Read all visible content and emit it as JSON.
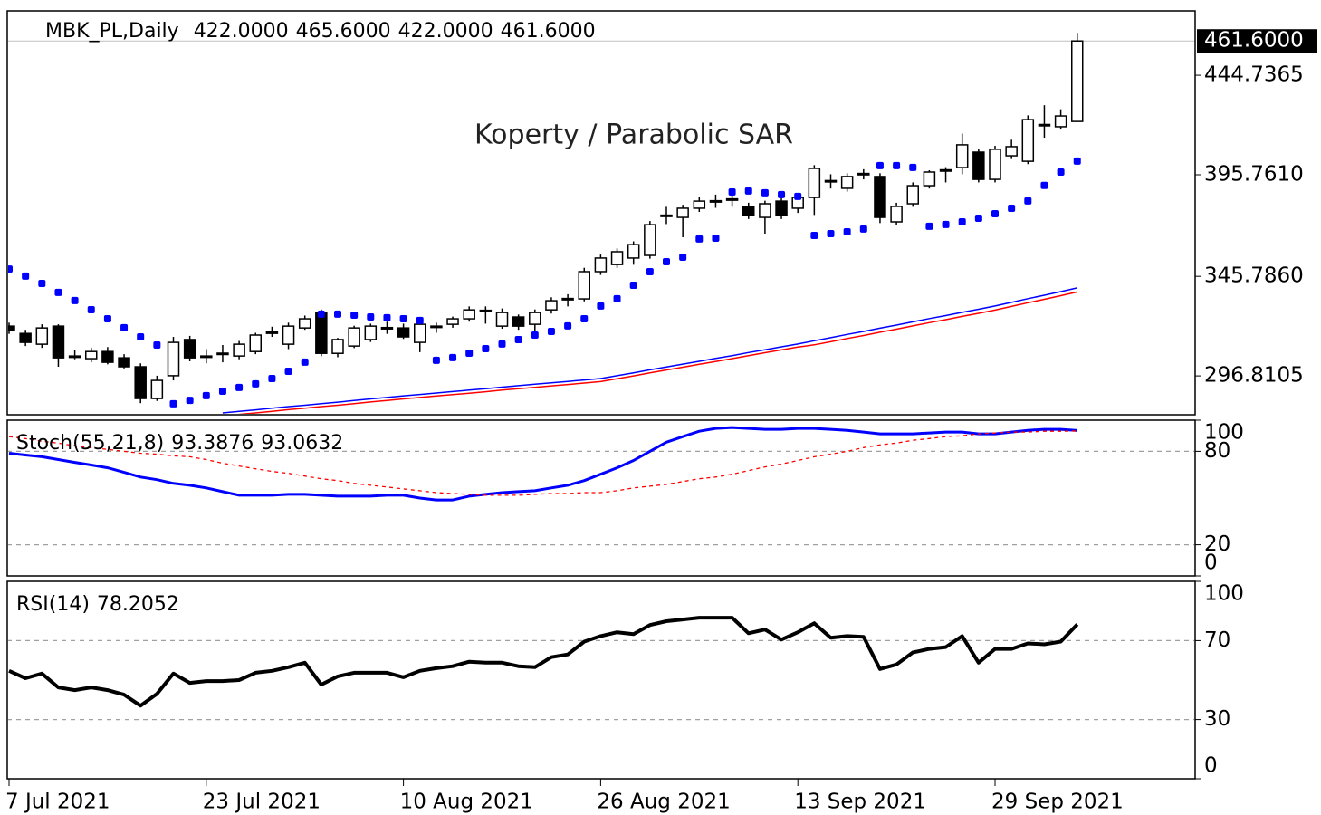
{
  "chart_data": [
    {
      "type": "candlestick",
      "header": {
        "name": "MBK_PL,Daily",
        "value_labels": [
          "422.0000",
          "465.6000",
          "422.0000",
          "461.6000"
        ]
      },
      "annotation": "Koperty / Parabolic SAR",
      "categories": [
        "7 Jul 2021",
        null,
        null,
        null,
        null,
        null,
        null,
        null,
        null,
        null,
        null,
        null,
        "23 Jul 2021",
        null,
        null,
        null,
        null,
        null,
        null,
        null,
        null,
        null,
        null,
        null,
        "10 Aug 2021",
        null,
        null,
        null,
        null,
        null,
        null,
        null,
        null,
        null,
        null,
        null,
        "26 Aug 2021",
        null,
        null,
        null,
        null,
        null,
        null,
        null,
        null,
        null,
        null,
        null,
        "13 Sep 2021",
        null,
        null,
        null,
        null,
        null,
        null,
        null,
        null,
        null,
        null,
        null,
        "29 Sep 2021",
        null,
        null,
        null,
        null,
        null
      ],
      "open": [
        321.3,
        317.7,
        312.4,
        321.3,
        306.6,
        305.3,
        308.8,
        305.7,
        301.3,
        285.7,
        296.9,
        314.7,
        306.4,
        307.9,
        306.6,
        308.8,
        318.2,
        312.4,
        320.4,
        328.0,
        307.9,
        311.5,
        314.7,
        320.4,
        320.4,
        313.3,
        321.3,
        322.2,
        324.9,
        328.9,
        321.3,
        325.8,
        322.2,
        329.3,
        334.7,
        334.7,
        348.1,
        351.6,
        354.8,
        356.1,
        375.7,
        374.8,
        379.3,
        382.8,
        383.7,
        380.2,
        374.8,
        382.8,
        379.3,
        384.6,
        392.7,
        389.1,
        396.2,
        394.9,
        372.6,
        381.5,
        390.4,
        398.0,
        399.3,
        406.9,
        393.5,
        405.1,
        402.4,
        420.3,
        419.4,
        422
      ],
      "high": [
        323.0,
        319.5,
        322.2,
        322.2,
        309.5,
        310.6,
        311.0,
        307.5,
        303.0,
        296.9,
        316.0,
        316.5,
        310.0,
        312.0,
        314.0,
        318.0,
        321.0,
        323.0,
        326.5,
        329.5,
        315.5,
        321.5,
        322.5,
        323.5,
        322.5,
        323.5,
        323.0,
        326.0,
        331.0,
        331.0,
        330.0,
        327.0,
        329.5,
        335.5,
        337.0,
        350.0,
        356.5,
        359.5,
        363.0,
        373.0,
        380.0,
        381.0,
        385.0,
        386.0,
        386.5,
        382.0,
        383.0,
        384.5,
        386.0,
        400.5,
        396.0,
        396.5,
        398.5,
        396.5,
        382.0,
        392.0,
        398.0,
        399.5,
        416.0,
        408.5,
        410.0,
        413.0,
        425.0,
        430.0,
        428.0,
        465.6
      ],
      "low": [
        317.5,
        311.5,
        310.6,
        301.3,
        305.0,
        303.5,
        302.5,
        300.5,
        283.4,
        284.5,
        294.6,
        304.0,
        303.0,
        303.5,
        305.0,
        307.5,
        316.0,
        310.0,
        319.5,
        306.5,
        306.0,
        310.5,
        313.5,
        317.5,
        315.0,
        308.5,
        318.0,
        320.5,
        323.5,
        322.5,
        320.0,
        319.5,
        318.5,
        327.5,
        331.0,
        333.5,
        346.5,
        350.0,
        351.5,
        354.5,
        371.5,
        365.0,
        377.5,
        379.5,
        380.0,
        374.0,
        366.8,
        374.0,
        377.0,
        376.0,
        389.0,
        387.5,
        393.5,
        372.0,
        371.0,
        380.0,
        389.0,
        392.0,
        396.0,
        392.0,
        392.0,
        403.5,
        401.0,
        414.0,
        418.0,
        422
      ],
      "close": [
        319.1,
        313.3,
        320.4,
        305.7,
        306.4,
        308.8,
        303.5,
        301.3,
        285.7,
        294.6,
        313.3,
        305.7,
        306.6,
        308.0,
        312.4,
        316.9,
        318.4,
        321.3,
        324.9,
        307.9,
        314.7,
        320.4,
        321.3,
        320.6,
        316.0,
        322.2,
        321.1,
        324.9,
        329.3,
        329.1,
        328.0,
        321.3,
        328.0,
        333.8,
        334.9,
        348.1,
        354.8,
        357.9,
        361.4,
        371.2,
        375.9,
        379.3,
        382.8,
        383.0,
        383.9,
        375.7,
        381.5,
        375.7,
        384.6,
        398.9,
        392.9,
        394.9,
        396.4,
        374.8,
        380.2,
        390.4,
        397.1,
        398.2,
        410.5,
        393.5,
        408.3,
        409.6,
        422.9,
        420.5,
        424.7,
        461.6
      ],
      "overlays": [
        {
          "type": "dots",
          "color": "#0000ff",
          "values": [
            349.4,
            345.9,
            342.3,
            337.9,
            333.9,
            329.4,
            324.9,
            320.5,
            316.0,
            312.0,
            283.1,
            284.8,
            287.1,
            289.3,
            291.1,
            292.9,
            295.5,
            299.1,
            303.6,
            327.2,
            327.2,
            326.7,
            325.8,
            325.4,
            324.9,
            324.1,
            304.5,
            305.8,
            308.0,
            310.2,
            312.5,
            314.7,
            316.9,
            318.7,
            321.4,
            324.9,
            331.2,
            334.8,
            341.4,
            348.1,
            353.0,
            355.2,
            364.2,
            364.6,
            387.3,
            387.8,
            386.9,
            386.0,
            385.1,
            365.9,
            366.8,
            367.7,
            369.1,
            400.3,
            400.3,
            399.4,
            370.4,
            371.3,
            372.6,
            374.4,
            376.6,
            379.3,
            382.9,
            390.5,
            397.1,
            402.5
          ]
        },
        {
          "type": "line",
          "color": "#0000ff",
          "values": [
            null,
            null,
            null,
            null,
            null,
            null,
            null,
            null,
            null,
            null,
            null,
            null,
            null,
            278.6,
            279.4,
            280.1,
            280.9,
            281.7,
            282.4,
            283.2,
            283.9,
            284.7,
            285.5,
            286.2,
            287.0,
            287.7,
            288.4,
            289.1,
            289.8,
            290.5,
            291.3,
            292.0,
            292.7,
            293.4,
            294.1,
            294.8,
            295.5,
            296.9,
            298.3,
            299.8,
            301.2,
            302.6,
            304.0,
            305.4,
            306.8,
            308.3,
            309.7,
            311.1,
            312.5,
            314.1,
            315.6,
            317.2,
            318.7,
            320.3,
            321.8,
            323.4,
            325.0,
            326.5,
            328.1,
            329.6,
            331.2,
            333.0,
            334.8,
            336.5,
            338.3,
            340.1
          ]
        },
        {
          "type": "line",
          "color": "#ff0000",
          "values": [
            null,
            null,
            null,
            null,
            null,
            null,
            null,
            null,
            null,
            null,
            null,
            null,
            null,
            277.1,
            277.9,
            278.6,
            279.4,
            280.2,
            280.9,
            281.7,
            282.4,
            283.2,
            284.0,
            284.7,
            285.5,
            286.2,
            286.9,
            287.6,
            288.3,
            289.0,
            289.8,
            290.5,
            291.2,
            291.9,
            292.6,
            293.3,
            294.0,
            295.4,
            296.8,
            298.3,
            299.7,
            301.1,
            302.5,
            303.9,
            305.3,
            306.8,
            308.2,
            309.6,
            311.0,
            312.1,
            313.6,
            315.2,
            316.7,
            318.3,
            319.8,
            321.4,
            323.0,
            324.5,
            326.1,
            327.6,
            329.2,
            331.0,
            332.8,
            334.5,
            336.3,
            338.1
          ]
        }
      ],
      "ylim": [
        277.7,
        476.4
      ],
      "yticks": [
        296.8105,
        {
          "value": 345.786,
          "label": "345.7860"
        },
        {
          "value": 395.761,
          "label": "395.7610"
        },
        444.7365
      ],
      "price_tag": {
        "value": 461.6,
        "label": "461.6000"
      }
    },
    {
      "type": "line",
      "title": "Stoch(55,21,8)",
      "series": [
        {
          "color": "#0000ff",
          "style": "solid",
          "values": [
            78.8,
            77.6,
            76.5,
            74.7,
            72.9,
            71.2,
            69.4,
            66.5,
            63.5,
            61.8,
            59.4,
            58.2,
            56.5,
            54.1,
            51.8,
            51.8,
            51.8,
            52.4,
            52.4,
            51.8,
            51.2,
            51.2,
            51.2,
            51.8,
            51.8,
            50.0,
            48.8,
            48.8,
            51.2,
            52.4,
            53.5,
            54.1,
            54.7,
            56.5,
            58.2,
            61.2,
            65.3,
            69.4,
            74.1,
            80.0,
            85.9,
            89.4,
            92.9,
            94.7,
            95.3,
            94.7,
            94.1,
            94.1,
            94.7,
            94.7,
            94.1,
            93.5,
            92.4,
            91.2,
            91.2,
            91.2,
            91.8,
            92.4,
            92.4,
            91.2,
            91.2,
            92.4,
            93.5,
            94.1,
            94.1,
            93.3876
          ]
        },
        {
          "color": "#ff0000",
          "style": "dashed",
          "values": [
            89.4,
            88.2,
            86.5,
            85.3,
            83.5,
            82.4,
            81.2,
            80.0,
            78.8,
            78.2,
            77.1,
            76.5,
            74.7,
            72.4,
            70.6,
            68.8,
            67.1,
            65.9,
            64.1,
            62.4,
            61.2,
            59.4,
            58.2,
            57.1,
            55.9,
            54.7,
            53.5,
            52.9,
            52.4,
            51.8,
            51.8,
            51.8,
            52.4,
            52.9,
            52.9,
            53.5,
            53.5,
            54.7,
            56.5,
            57.6,
            58.8,
            60.6,
            62.4,
            63.5,
            65.3,
            67.6,
            70.0,
            71.8,
            74.1,
            76.5,
            78.2,
            80.0,
            82.4,
            84.1,
            85.3,
            87.1,
            88.2,
            89.4,
            90.0,
            91.2,
            91.8,
            92.4,
            92.4,
            92.9,
            92.9,
            93.0632
          ]
        }
      ],
      "ylim": [
        0,
        100
      ],
      "yticks": [
        0,
        20,
        80,
        100
      ],
      "levels": [
        20,
        80
      ]
    },
    {
      "type": "line",
      "title": "RSI(14)",
      "series": [
        {
          "color": "#000000",
          "style": "solid",
          "values": [
            54.7,
            50.9,
            53.3,
            46.3,
            44.9,
            46.3,
            44.9,
            42.6,
            37.0,
            43.0,
            53.3,
            48.6,
            49.5,
            49.5,
            50.0,
            53.7,
            54.7,
            56.5,
            58.8,
            47.7,
            51.9,
            53.7,
            53.7,
            53.7,
            51.4,
            54.7,
            56.0,
            57.0,
            59.3,
            58.8,
            58.8,
            57.0,
            56.5,
            61.6,
            63.0,
            69.5,
            72.3,
            74.2,
            73.3,
            77.9,
            79.8,
            80.7,
            81.6,
            81.6,
            81.6,
            73.7,
            75.6,
            70.5,
            74.2,
            78.8,
            71.4,
            72.3,
            71.9,
            55.6,
            57.9,
            64.0,
            65.8,
            66.7,
            72.3,
            58.8,
            65.8,
            65.8,
            68.6,
            68.1,
            69.5,
            78.2052
          ]
        }
      ],
      "ylim": [
        0,
        100
      ],
      "yticks": [
        0,
        30,
        70,
        100
      ],
      "levels": [
        30,
        70
      ]
    }
  ]
}
